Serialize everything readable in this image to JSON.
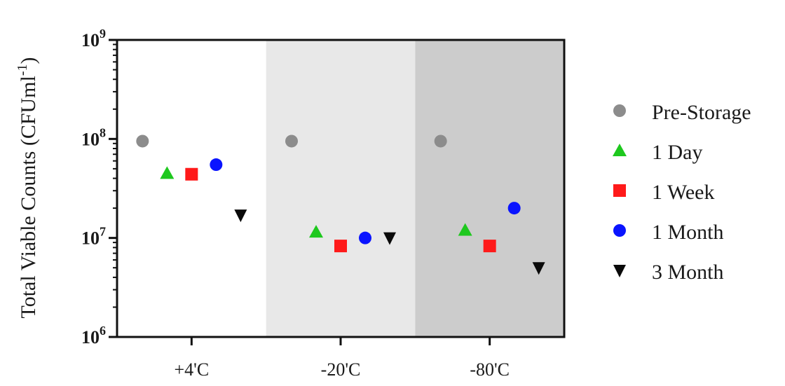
{
  "chart_data": {
    "type": "scatter",
    "title": "",
    "xlabel": "",
    "ylabel": "Total Viable Counts (CFUml",
    "ylabel_sup": "-1",
    "yscale": "log",
    "ylim": [
      1000000,
      1000000000
    ],
    "yticks": [
      {
        "base": "10",
        "exp": "6",
        "value": 1000000
      },
      {
        "base": "10",
        "exp": "7",
        "value": 10000000
      },
      {
        "base": "10",
        "exp": "8",
        "value": 100000000
      },
      {
        "base": "10",
        "exp": "9",
        "value": 1000000000
      }
    ],
    "categories": [
      "+4'C",
      "-20'C",
      "-80'C"
    ],
    "group_backgrounds": [
      "#ffffff",
      "#e8e8e8",
      "#cccccc"
    ],
    "legend_position": "right",
    "series": [
      {
        "name": "Pre-Storage",
        "marker": "circle",
        "color": "#8c8c8c",
        "values": [
          95000000,
          95000000,
          95000000
        ]
      },
      {
        "name": "1 Day",
        "marker": "triangle-up",
        "color": "#1ec81e",
        "values": [
          45000000,
          11500000,
          12000000
        ]
      },
      {
        "name": "1 Week",
        "marker": "square",
        "color": "#ff1a1a",
        "values": [
          44000000,
          8300000,
          8300000
        ]
      },
      {
        "name": "1 Month",
        "marker": "circle",
        "color": "#0a14ff",
        "values": [
          55000000,
          10000000,
          20000000
        ]
      },
      {
        "name": "3 Month",
        "marker": "triangle-down",
        "color": "#0a0a0a",
        "values": [
          17000000,
          10000000,
          5000000
        ]
      }
    ]
  }
}
